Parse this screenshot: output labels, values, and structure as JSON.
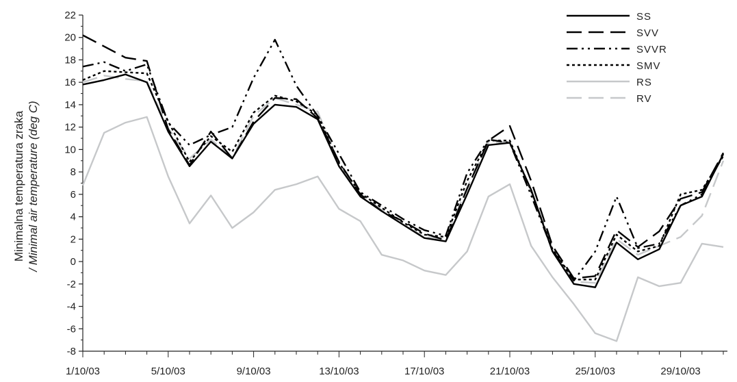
{
  "chart_data": {
    "type": "line",
    "ylabel_line1": "Minimalna temperatura zraka",
    "ylabel_line2": "/ Minimal air temperature (deg C)",
    "ylim": [
      -8,
      22
    ],
    "y_ticks": [
      -8,
      -6,
      -4,
      -2,
      0,
      2,
      4,
      6,
      8,
      10,
      12,
      14,
      16,
      18,
      20,
      22
    ],
    "x_tick_labels": [
      "1/10/03",
      "5/10/03",
      "9/10/03",
      "13/10/03",
      "17/10/03",
      "21/10/03",
      "25/10/03",
      "29/10/03"
    ],
    "x_tick_days": [
      1,
      5,
      9,
      13,
      17,
      21,
      25,
      29
    ],
    "x_range_days": [
      1,
      31
    ],
    "legend_position": "top-right",
    "grid": false,
    "series": [
      {
        "name": "SS",
        "color": "#000000",
        "style": "solid",
        "x": [
          1,
          2,
          3,
          4,
          5,
          6,
          7,
          8,
          9,
          10,
          11,
          12,
          13,
          14,
          15,
          16,
          17,
          18,
          19,
          20,
          21,
          22,
          23,
          24,
          25,
          26,
          27,
          28,
          29,
          30,
          31
        ],
        "y": [
          15.8,
          16.2,
          16.7,
          16.0,
          11.6,
          8.5,
          10.7,
          9.2,
          12.3,
          14.0,
          13.8,
          12.7,
          8.5,
          5.8,
          4.5,
          3.3,
          2.1,
          1.8,
          6.0,
          10.4,
          10.6,
          6.4,
          0.9,
          -2.0,
          -2.3,
          1.7,
          0.2,
          1.1,
          5.0,
          5.8,
          9.6
        ]
      },
      {
        "name": "SVV",
        "color": "#000000",
        "style": "dash",
        "x": [
          1,
          2,
          3,
          4,
          5,
          6,
          7,
          8,
          9,
          10,
          11,
          12,
          13,
          14,
          15,
          16,
          17,
          18,
          19,
          20,
          21,
          22,
          23,
          24,
          25,
          26,
          27,
          28,
          29,
          30,
          31
        ],
        "y": [
          20.2,
          19.2,
          18.2,
          17.9,
          11.8,
          8.6,
          11.6,
          9.2,
          12.5,
          14.6,
          14.5,
          12.8,
          8.9,
          6.0,
          4.5,
          3.6,
          2.5,
          1.9,
          6.5,
          10.8,
          12.1,
          7.2,
          1.4,
          -1.5,
          -1.3,
          2.8,
          1.3,
          2.7,
          5.6,
          6.2,
          9.7
        ]
      },
      {
        "name": "SVVR",
        "color": "#000000",
        "style": "dashdotdot",
        "x": [
          1,
          2,
          3,
          4,
          5,
          6,
          7,
          8,
          9,
          10,
          11,
          12,
          13,
          14,
          15,
          16,
          17,
          18,
          19,
          20,
          21,
          22,
          23,
          24,
          25,
          26,
          27,
          28,
          29,
          30,
          31
        ],
        "y": [
          17.4,
          17.8,
          17.0,
          17.6,
          12.4,
          10.4,
          11.3,
          12.0,
          16.4,
          19.8,
          15.7,
          13.0,
          9.6,
          6.2,
          5.0,
          3.8,
          2.8,
          2.3,
          7.9,
          10.9,
          10.6,
          5.9,
          1.0,
          -1.7,
          0.9,
          5.8,
          1.2,
          1.6,
          5.0,
          6.0,
          9.5
        ]
      },
      {
        "name": "SMV",
        "color": "#000000",
        "style": "dot",
        "x": [
          1,
          2,
          3,
          4,
          5,
          6,
          7,
          8,
          9,
          10,
          11,
          12,
          13,
          14,
          15,
          16,
          17,
          18,
          19,
          20,
          21,
          22,
          23,
          24,
          25,
          26,
          27,
          28,
          29,
          30,
          31
        ],
        "y": [
          16.2,
          17.0,
          16.9,
          16.8,
          12.5,
          8.9,
          11.2,
          9.8,
          13.3,
          14.8,
          14.3,
          13.1,
          8.8,
          6.1,
          4.8,
          3.5,
          2.4,
          2.2,
          7.2,
          10.8,
          10.8,
          6.3,
          1.1,
          -1.6,
          -1.6,
          2.4,
          0.9,
          1.4,
          6.0,
          6.4,
          9.4
        ]
      },
      {
        "name": "RS",
        "color": "#c6c8ca",
        "style": "solid",
        "x": [
          1,
          2,
          3,
          4,
          5,
          6,
          7,
          8,
          9,
          10,
          11,
          12,
          13,
          14,
          15,
          16,
          17,
          18,
          19,
          20,
          21,
          22,
          23,
          24,
          25,
          26,
          27,
          28,
          29,
          30,
          31
        ],
        "y": [
          6.8,
          11.5,
          12.4,
          12.9,
          7.6,
          3.4,
          5.9,
          3.0,
          4.4,
          6.4,
          6.9,
          7.6,
          4.7,
          3.6,
          0.6,
          0.1,
          -0.8,
          -1.2,
          0.9,
          5.8,
          6.9,
          1.4,
          -1.4,
          -3.8,
          -6.4,
          -7.1,
          -1.4,
          -2.2,
          -1.9,
          1.6,
          1.3
        ]
      },
      {
        "name": "RV",
        "color": "#c6c8ca",
        "style": "dash",
        "x": [
          1,
          2,
          3,
          4,
          5,
          6,
          7,
          8,
          9,
          10,
          11,
          12,
          13,
          14,
          15,
          16,
          17,
          18,
          19,
          20,
          21,
          22,
          23,
          24,
          25,
          26,
          27,
          28,
          29,
          30,
          31
        ],
        "y": [
          16.0,
          16.6,
          16.3,
          16.1,
          11.9,
          9.2,
          10.9,
          9.3,
          13.0,
          14.6,
          14.0,
          13.4,
          8.7,
          6.0,
          4.6,
          3.3,
          2.2,
          2.0,
          6.6,
          10.6,
          10.7,
          6.2,
          1.2,
          -1.8,
          -1.9,
          2.0,
          0.6,
          1.4,
          2.2,
          4.1,
          9.0
        ]
      }
    ]
  }
}
